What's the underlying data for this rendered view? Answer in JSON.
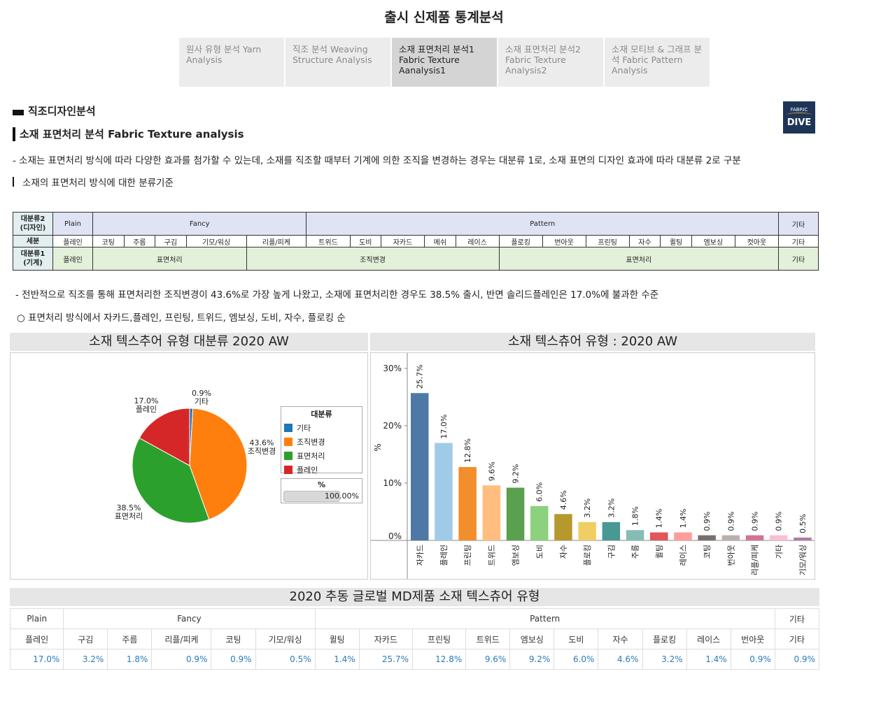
{
  "page_title": "출시 신제품 통계분석",
  "tabs": [
    {
      "label": "원사 유형 분석  Yarn Analysis"
    },
    {
      "label": "직조 분석 Weaving Structure Analysis"
    },
    {
      "label": "소재 표면처리 분석1 Fabric Texture Aanalysis1"
    },
    {
      "label": "소재 표면처리 분석2 Fabric Texture Analysis2"
    },
    {
      "label": "소재 모티브 & 그래프 분석 Fabric Pattern Analysis"
    }
  ],
  "section_title": "직조디자인분석",
  "logo": {
    "line1": "FABRIC",
    "line2": "DIVE"
  },
  "sub_title": "소재 표면처리 분석 Fabric Texture analysis",
  "description": "- 소재는 표면처리 방식에 따라 다양한 효과를 첨가할 수 있는데, 소재를 직조할 때부터 기계에 의한 조직을 변경하는 경우는 대분류 1로, 소재 표면의 디자인 효과에 따라 대분류 2로 구분",
  "criteria_label": "소재의 표면처리 방식에 대한 분류기준",
  "class_table": {
    "row1_head": "대분류2\n(디자인)",
    "row2_head": "세분",
    "row3_head": "대분류1\n(기계)",
    "plain": "Plain",
    "fancy": "Fancy",
    "pattern": "Pattern",
    "etc": "기타",
    "details": [
      "플레인",
      "코팅",
      "주름",
      "구김",
      "기모/워싱",
      "리플/피케",
      "트위드",
      "도비",
      "자카드",
      "메쉬",
      "레이스",
      "플로킹",
      "번아웃",
      "프린팅",
      "자수",
      "퀼팅",
      "엠보싱",
      "컷아웃",
      "기타"
    ],
    "machine": {
      "plain": "플레인",
      "surface1": "표면처리",
      "weave": "조직변경",
      "surface2": "표면처리",
      "etc": "기타"
    }
  },
  "note1": "- 전반적으로 직조를 통해 표면처리한 조직변경이 43.6%로 가장 높게 나왔고, 소재에 표면처리한 경우도 38.5% 출시, 반면 솔리드플레인은 17.0%에 불과한 수준",
  "note2": "○ 표면처리 방식에서 자카드,플레인, 프린팅, 트위드, 엠보싱, 도비, 자수, 플로킹 순",
  "pie_title": "소재 텍스추어 유형 대분류 2020 AW",
  "bar_title": "소재 텍스츄어 유형 : 2020 AW",
  "legend": {
    "title": "대분류",
    "items": [
      "기타",
      "조직변경",
      "표면처리",
      "플레인"
    ]
  },
  "pct_box": {
    "title": "%",
    "value": "100.00%",
    "fill": 1.0
  },
  "chart_data": [
    {
      "type": "pie",
      "title": "소재 텍스추어 유형 대분류 2020 AW",
      "slices": [
        {
          "label": "기타",
          "value": 0.9,
          "display": "0.9%",
          "color": "#1f77b4"
        },
        {
          "label": "조직변경",
          "value": 43.6,
          "display": "43.6%",
          "color": "#ff7f0e"
        },
        {
          "label": "표면처리",
          "value": 38.5,
          "display": "38.5%",
          "color": "#2ca02c"
        },
        {
          "label": "플레인",
          "value": 17.0,
          "display": "17.0%",
          "color": "#d62728"
        }
      ]
    },
    {
      "type": "bar",
      "title": "소재 텍스츄어 유형 : 2020 AW",
      "ylabel": "%",
      "ylim": [
        0,
        30
      ],
      "yticks": [
        "0%",
        "10%",
        "20%",
        "30%"
      ],
      "categories": [
        "자카드",
        "플레인",
        "프린팅",
        "트위드",
        "엠보싱",
        "도비",
        "자수",
        "플로킹",
        "구김",
        "주름",
        "퀼팅",
        "레이스",
        "코팅",
        "번아웃",
        "리플/피케",
        "기타",
        "기모/워싱"
      ],
      "values": [
        25.7,
        17.0,
        12.8,
        9.6,
        9.2,
        6.0,
        4.6,
        3.2,
        3.2,
        1.8,
        1.4,
        1.4,
        0.9,
        0.9,
        0.9,
        0.9,
        0.5
      ],
      "labels": [
        "25.7%",
        "17.0%",
        "12.8%",
        "9.6%",
        "9.2%",
        "6.0%",
        "4.6%",
        "3.2%",
        "3.2%",
        "1.8%",
        "1.4%",
        "1.4%",
        "0.9%",
        "0.9%",
        "0.9%",
        "0.9%",
        "0.5%"
      ],
      "colors": [
        "#4e79a7",
        "#a0cbe8",
        "#f28e2b",
        "#ffbe7d",
        "#59a14f",
        "#8cd17d",
        "#b6992d",
        "#f1ce63",
        "#499894",
        "#86bcb6",
        "#e15759",
        "#ff9d9a",
        "#79706e",
        "#bab0ac",
        "#d37295",
        "#fabfd2",
        "#b07aa1"
      ]
    }
  ],
  "md_title": "2020 추동 글로벌 MD제품 소재 텍스츄어 유형",
  "md_table": {
    "groups": [
      "Plain",
      "Fancy",
      "Pattern",
      "기타"
    ],
    "headers": [
      "플레인",
      "구김",
      "주름",
      "리플/피케",
      "코팅",
      "기모/워싱",
      "퀼팅",
      "자카드",
      "프린팅",
      "트위드",
      "엠보싱",
      "도비",
      "자수",
      "플로킹",
      "레이스",
      "번아웃",
      "기타"
    ],
    "values": [
      "17.0%",
      "3.2%",
      "1.8%",
      "0.9%",
      "0.9%",
      "0.5%",
      "1.4%",
      "25.7%",
      "12.8%",
      "9.6%",
      "9.2%",
      "6.0%",
      "4.6%",
      "3.2%",
      "1.4%",
      "0.9%",
      "0.9%"
    ]
  }
}
